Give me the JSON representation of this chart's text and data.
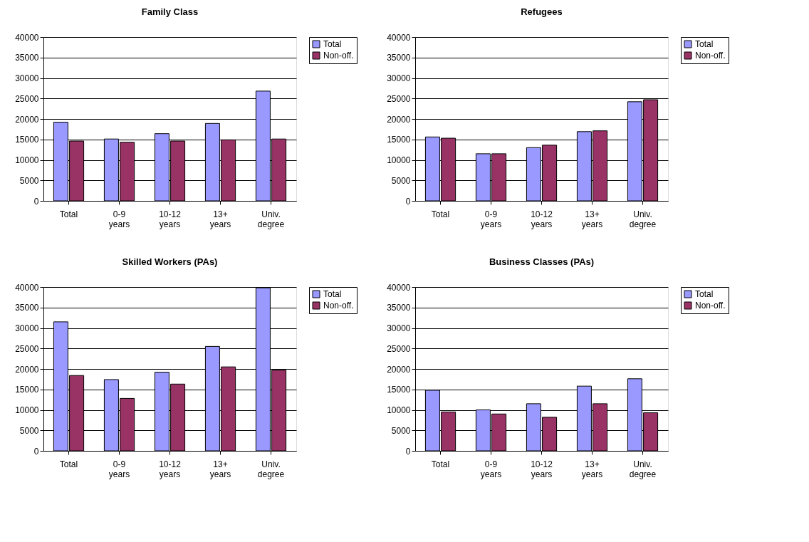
{
  "chart_data": [
    {
      "type": "bar",
      "title": "Family Class",
      "categories": [
        "Total",
        "0-9 years",
        "10-12 years",
        "13+ years",
        "Univ. degree"
      ],
      "series": [
        {
          "name": "Total",
          "color": "#9999ff",
          "values": [
            19200,
            15100,
            16400,
            18900,
            26800
          ]
        },
        {
          "name": "Non-off.",
          "color": "#993366",
          "values": [
            14600,
            14300,
            14600,
            14900,
            15100
          ]
        }
      ],
      "ylim": [
        0,
        40000
      ],
      "yticks": [
        0,
        5000,
        10000,
        15000,
        20000,
        25000,
        30000,
        35000,
        40000
      ],
      "grid": "y",
      "legend": "right"
    },
    {
      "type": "bar",
      "title": "Refugees",
      "categories": [
        "Total",
        "0-9 years",
        "10-12 years",
        "13+ years",
        "Univ. degree"
      ],
      "series": [
        {
          "name": "Total",
          "color": "#9999ff",
          "values": [
            15600,
            11500,
            13000,
            16900,
            24200
          ]
        },
        {
          "name": "Non-off.",
          "color": "#993366",
          "values": [
            15300,
            11500,
            13600,
            17100,
            24700
          ]
        }
      ],
      "ylim": [
        0,
        40000
      ],
      "yticks": [
        0,
        5000,
        10000,
        15000,
        20000,
        25000,
        30000,
        35000,
        40000
      ],
      "grid": "y",
      "legend": "right"
    },
    {
      "type": "bar",
      "title": "Skilled Workers (PAs)",
      "categories": [
        "Total",
        "0-9 years",
        "10-12 years",
        "13+ years",
        "Univ. degree"
      ],
      "series": [
        {
          "name": "Total",
          "color": "#9999ff",
          "values": [
            31500,
            17400,
            19200,
            25500,
            39800
          ]
        },
        {
          "name": "Non-off.",
          "color": "#993366",
          "values": [
            18400,
            12800,
            16300,
            20500,
            19700
          ]
        }
      ],
      "ylim": [
        0,
        40000
      ],
      "yticks": [
        0,
        5000,
        10000,
        15000,
        20000,
        25000,
        30000,
        35000,
        40000
      ],
      "grid": "y",
      "legend": "right"
    },
    {
      "type": "bar",
      "title": "Business Classes (PAs)",
      "categories": [
        "Total",
        "0-9 years",
        "10-12 years",
        "13+ years",
        "Univ. degree"
      ],
      "series": [
        {
          "name": "Total",
          "color": "#9999ff",
          "values": [
            14800,
            10000,
            11500,
            15800,
            17600
          ]
        },
        {
          "name": "Non-off.",
          "color": "#993366",
          "values": [
            9500,
            9000,
            8200,
            11500,
            9300
          ]
        }
      ],
      "ylim": [
        0,
        40000
      ],
      "yticks": [
        0,
        5000,
        10000,
        15000,
        20000,
        25000,
        30000,
        35000,
        40000
      ],
      "grid": "y",
      "legend": "right"
    }
  ]
}
